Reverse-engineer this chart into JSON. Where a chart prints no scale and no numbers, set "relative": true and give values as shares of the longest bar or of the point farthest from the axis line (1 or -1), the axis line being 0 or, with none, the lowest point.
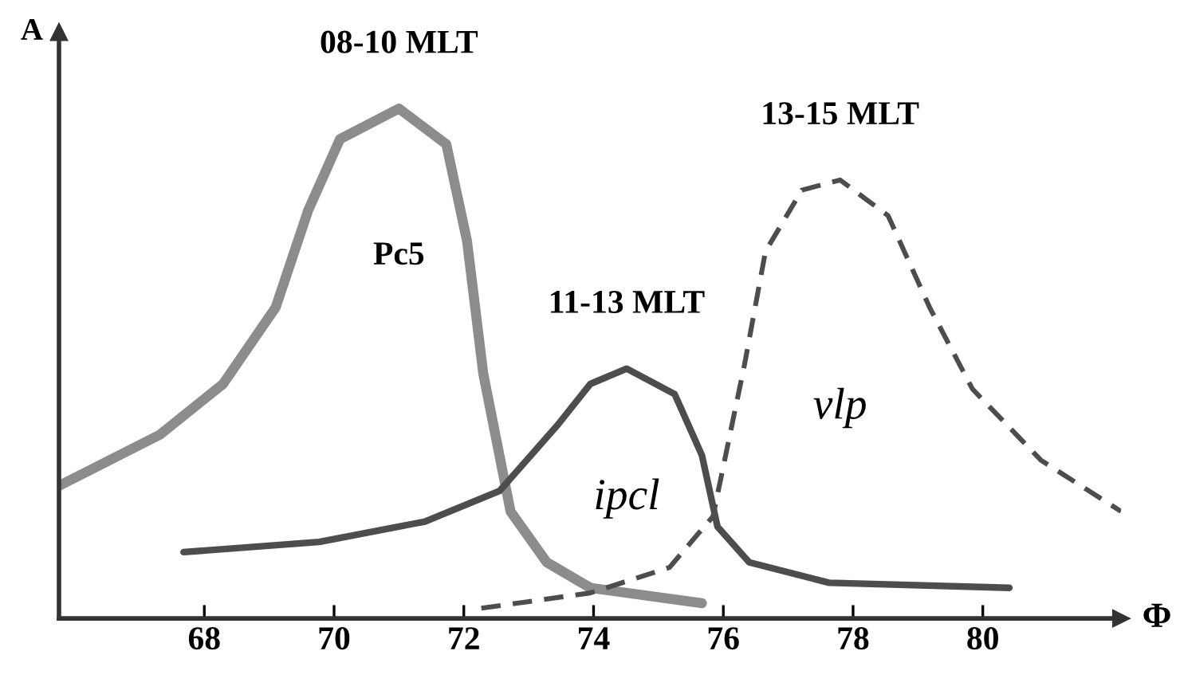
{
  "chart_data": {
    "type": "line",
    "relative": true,
    "xlabel": "Φ",
    "ylabel": "A",
    "xlim": [
      65.76,
      82.13
    ],
    "xticks": [
      68,
      70,
      72,
      74,
      76,
      78,
      80
    ],
    "tick_labels": "x",
    "grid": false,
    "legend": false,
    "series": [
      {
        "name": "Pc5",
        "color": "#8c8c8c",
        "line_style": "solid",
        "x": [
          65.76,
          67.31,
          68.29,
          69.1,
          69.6,
          70.09,
          71.0,
          71.73,
          72.05,
          72.3,
          72.72,
          73.28,
          73.95,
          75.67
        ],
        "values": [
          0.26,
          0.36,
          0.46,
          0.61,
          0.8,
          0.94,
          1.0,
          0.93,
          0.74,
          0.48,
          0.21,
          0.11,
          0.06,
          0.03
        ]
      },
      {
        "name": "ipcl",
        "color": "#4d4d4d",
        "line_style": "solid",
        "x": [
          67.68,
          69.77,
          71.4,
          72.55,
          73.45,
          73.95,
          74.51,
          75.25,
          75.67,
          75.91,
          76.4,
          77.63,
          80.41
        ],
        "values": [
          0.13,
          0.15,
          0.19,
          0.25,
          0.38,
          0.46,
          0.49,
          0.44,
          0.32,
          0.18,
          0.11,
          0.07,
          0.06
        ]
      },
      {
        "name": "vlp",
        "color": "#4d4d4d",
        "line_style": "dashed",
        "x": [
          72.27,
          73.95,
          75.17,
          75.84,
          76.33,
          76.65,
          77.21,
          77.8,
          78.54,
          79.18,
          79.84,
          80.9,
          82.13
        ],
        "values": [
          0.02,
          0.05,
          0.1,
          0.2,
          0.5,
          0.72,
          0.84,
          0.86,
          0.79,
          0.61,
          0.45,
          0.31,
          0.21
        ]
      }
    ],
    "annotations": [
      {
        "text": "08-10 MLT",
        "x": 71.0,
        "y": 1.0
      },
      {
        "text": "11-13 MLT",
        "x": 74.51,
        "y": 0.49
      },
      {
        "text": "13-15 MLT",
        "x": 77.8,
        "y": 0.86
      }
    ]
  }
}
